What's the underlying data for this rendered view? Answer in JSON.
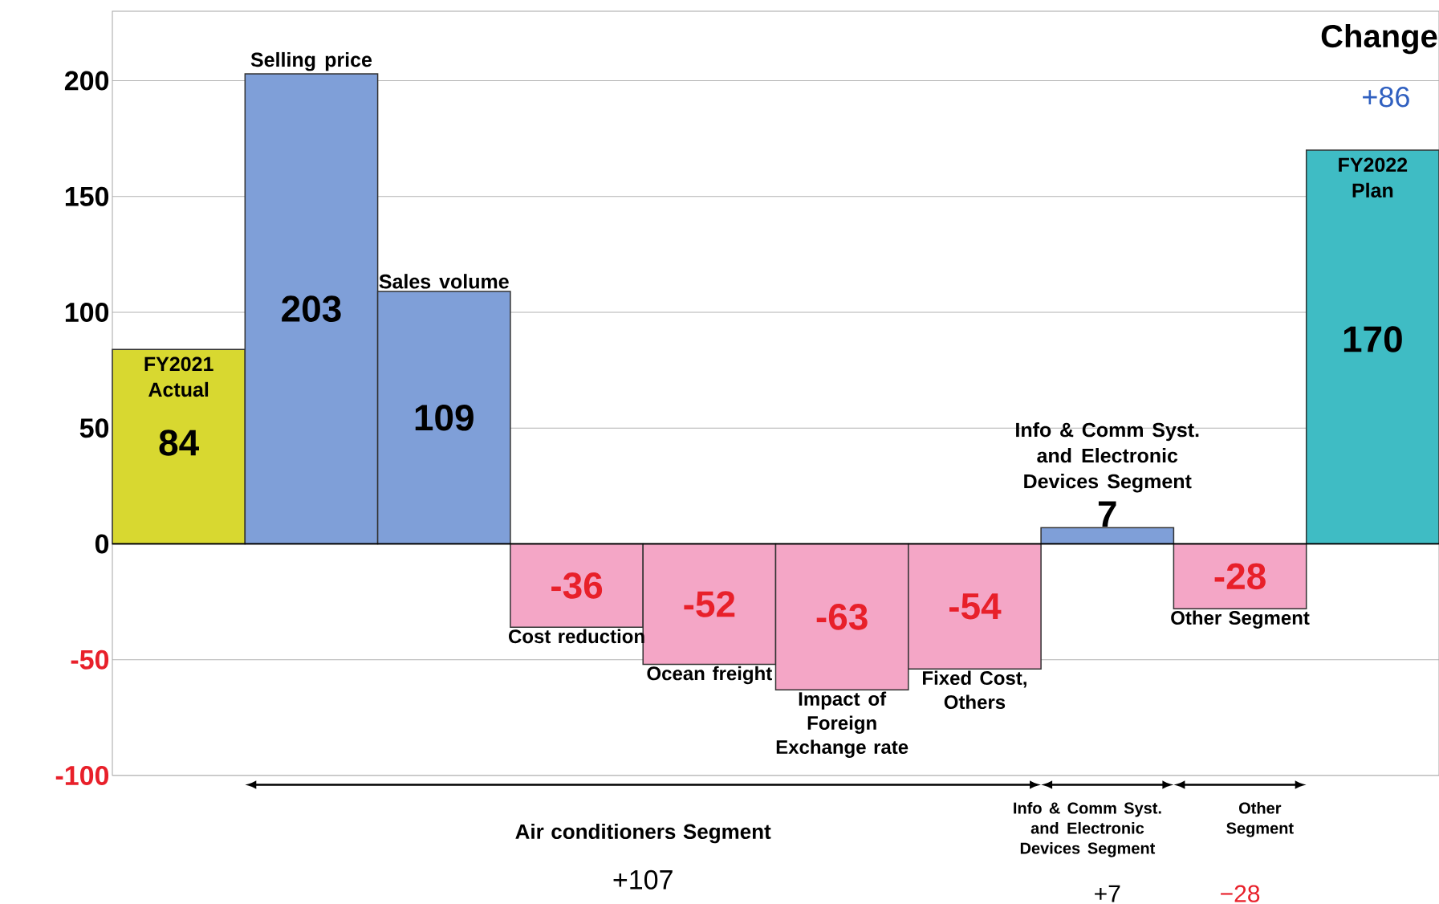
{
  "chart_data": {
    "type": "bar",
    "categories": [
      "FY2021 Actual",
      "Selling price",
      "Sales volume",
      "Cost reduction",
      "Ocean freight",
      "Impact of  Foreign Exchange rate",
      "Fixed Cost, Others",
      "Info & Comm Syst. and Electronic Devices Segment",
      "Other Segment",
      "FY2022 Plan"
    ],
    "values": [
      84,
      203,
      109,
      -36,
      -52,
      -63,
      -54,
      7,
      -28,
      170
    ],
    "colors": [
      "#d8d830",
      "#7f9fd8",
      "#7f9fd8",
      "#f4a6c6",
      "#f4a6c6",
      "#f4a6c6",
      "#f4a6c6",
      "#7f9fd8",
      "#f4a6c6",
      "#3fbcc4"
    ],
    "data_labels": true,
    "ylim": [
      -100,
      230
    ],
    "yticks": [
      -100,
      -50,
      0,
      50,
      100,
      150,
      200
    ],
    "grid": "y",
    "annotations": [
      "Change",
      "+86",
      "Air conditioners Segment",
      "+107",
      "Info & Comm Syst. and Electronic Devices Segment",
      "+7",
      "Other Segment",
      "−28"
    ]
  }
}
